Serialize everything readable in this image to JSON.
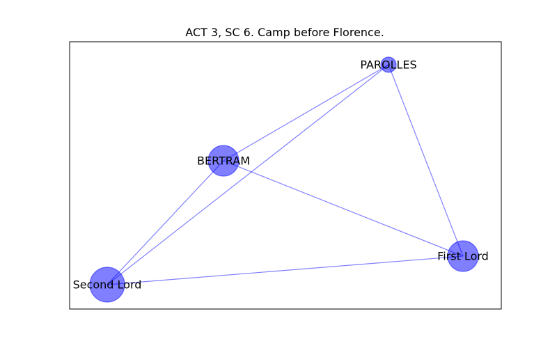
{
  "title": "ACT 3, SC 6. Camp before Florence.",
  "colors": {
    "node_fill": "#0000ff",
    "node_stroke": "#0000ff",
    "edge": "#0000ff",
    "frame": "#000000"
  },
  "nodes": [
    {
      "id": "parolles",
      "label": "PAROLLES",
      "weight": 1
    },
    {
      "id": "bertram",
      "label": "BERTRAM",
      "weight": 2
    },
    {
      "id": "first-lord",
      "label": "First Lord",
      "weight": 2
    },
    {
      "id": "second-lord",
      "label": "Second Lord",
      "weight": 3
    }
  ],
  "edges": [
    {
      "source": "parolles",
      "target": "bertram"
    },
    {
      "source": "parolles",
      "target": "second-lord"
    },
    {
      "source": "parolles",
      "target": "first-lord"
    },
    {
      "source": "bertram",
      "target": "second-lord"
    },
    {
      "source": "bertram",
      "target": "first-lord"
    },
    {
      "source": "second-lord",
      "target": "first-lord"
    }
  ]
}
